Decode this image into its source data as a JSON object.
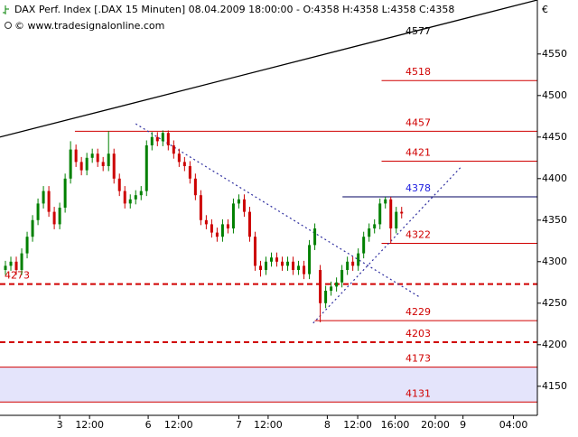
{
  "chart_data": {
    "type": "candlestick",
    "title": "DAX Perf. Index [.DAX  15 Minuten] 08.04.2009 18:00:00 - O:4358 H:4358 L:4358 C:4358",
    "subtitle": "© www.tradesignalonline.com",
    "y_unit": "€",
    "open": [
      4290,
      4295,
      4300,
      4290,
      4310,
      4330,
      4350,
      4370,
      4385,
      4360,
      4345,
      4365,
      4400,
      4435,
      4420,
      4410,
      4425,
      4430,
      4420,
      4415,
      4430,
      4400,
      4385,
      4370,
      4375,
      4380,
      4385,
      4440,
      4450,
      4445,
      4455,
      4440,
      4430,
      4420,
      4415,
      4400,
      4380,
      4350,
      4345,
      4335,
      4330,
      4345,
      4340,
      4370,
      4375,
      4360,
      4330,
      4295,
      4290,
      4300,
      4305,
      4300,
      4295,
      4300,
      4290,
      4295,
      4285,
      4320,
      4290,
      4250,
      4265,
      4270,
      4275,
      4290,
      4300,
      4295,
      4310,
      4330,
      4340,
      4345,
      4370,
      4375,
      4340,
      4360
    ],
    "high": [
      4301,
      4306,
      4306,
      4316,
      4336,
      4356,
      4376,
      4391,
      4391,
      4366,
      4371,
      4406,
      4445,
      4441,
      4426,
      4431,
      4436,
      4436,
      4426,
      4457,
      4436,
      4406,
      4391,
      4381,
      4386,
      4391,
      4446,
      4456,
      4456,
      4458,
      4458,
      4446,
      4436,
      4426,
      4421,
      4406,
      4386,
      4356,
      4351,
      4341,
      4351,
      4351,
      4376,
      4381,
      4381,
      4366,
      4336,
      4301,
      4306,
      4311,
      4311,
      4306,
      4306,
      4306,
      4301,
      4301,
      4326,
      4346,
      4296,
      4271,
      4276,
      4281,
      4296,
      4306,
      4306,
      4316,
      4336,
      4346,
      4351,
      4376,
      4378,
      4378,
      4366,
      4366
    ],
    "low": [
      4284,
      4289,
      4284,
      4284,
      4304,
      4324,
      4344,
      4364,
      4354,
      4339,
      4339,
      4359,
      4394,
      4414,
      4404,
      4404,
      4419,
      4414,
      4409,
      4409,
      4394,
      4379,
      4364,
      4364,
      4369,
      4374,
      4379,
      4434,
      4439,
      4439,
      4434,
      4424,
      4414,
      4409,
      4394,
      4374,
      4344,
      4339,
      4329,
      4324,
      4324,
      4334,
      4334,
      4364,
      4354,
      4324,
      4289,
      4282,
      4284,
      4294,
      4294,
      4289,
      4289,
      4284,
      4284,
      4279,
      4279,
      4314,
      4227,
      4244,
      4259,
      4264,
      4269,
      4284,
      4289,
      4289,
      4304,
      4324,
      4334,
      4339,
      4364,
      4322,
      4334,
      4352
    ],
    "close": [
      4295,
      4300,
      4290,
      4310,
      4330,
      4350,
      4370,
      4385,
      4360,
      4345,
      4365,
      4400,
      4435,
      4420,
      4410,
      4425,
      4430,
      4420,
      4415,
      4430,
      4400,
      4385,
      4370,
      4375,
      4380,
      4385,
      4440,
      4450,
      4445,
      4455,
      4440,
      4430,
      4420,
      4415,
      4400,
      4380,
      4350,
      4345,
      4335,
      4330,
      4345,
      4340,
      4370,
      4375,
      4360,
      4330,
      4295,
      4290,
      4300,
      4305,
      4300,
      4295,
      4300,
      4290,
      4295,
      4285,
      4320,
      4340,
      4250,
      4265,
      4270,
      4275,
      4290,
      4300,
      4295,
      4310,
      4330,
      4340,
      4345,
      4370,
      4375,
      4340,
      4360,
      4358
    ],
    "up_color": "#008000",
    "down_color": "#cc0000",
    "xlim": [
      -1,
      98
    ],
    "ylim": [
      4115,
      4615
    ],
    "xticks": [
      {
        "value": 10.0,
        "label": "3"
      },
      {
        "value": 15.5,
        "label": "12:00"
      },
      {
        "value": 26.3,
        "label": "6"
      },
      {
        "value": 31.9,
        "label": "12:00"
      },
      {
        "value": 43.0,
        "label": "7"
      },
      {
        "value": 48.4,
        "label": "12:00"
      },
      {
        "value": 59.3,
        "label": "8"
      },
      {
        "value": 64.9,
        "label": "12:00"
      },
      {
        "value": 71.8,
        "label": "16:00"
      },
      {
        "value": 79.2,
        "label": "20:00"
      },
      {
        "value": 84.3,
        "label": "9"
      },
      {
        "value": 93.6,
        "label": "04:00"
      }
    ],
    "yticks": [
      4150,
      4200,
      4250,
      4300,
      4350,
      4400,
      4450,
      4500,
      4550
    ],
    "levels": [
      {
        "value": 4518,
        "x_start": 69.3,
        "color": "#d00000",
        "style": "solid",
        "label_at": "right"
      },
      {
        "value": 4457,
        "x_start": 12.8,
        "color": "#d00000",
        "style": "solid",
        "label_at": "right"
      },
      {
        "value": 4421,
        "x_start": 69.3,
        "color": "#d00000",
        "style": "solid",
        "label_at": "right"
      },
      {
        "value": 4378,
        "x_start": 62.1,
        "color": "#000060",
        "label_color": "#2020e0",
        "style": "solid",
        "label_at": "right"
      },
      {
        "value": 4322,
        "x_start": 69.3,
        "color": "#d00000",
        "style": "solid",
        "label_at": "right"
      },
      {
        "value": 4273,
        "x_start": -1,
        "color": "#d00000",
        "style": "dashed",
        "label_at": "left"
      },
      {
        "value": 4229,
        "x_start": 57.0,
        "color": "#d00000",
        "style": "solid",
        "label_at": "right"
      },
      {
        "value": 4203,
        "x_start": -1,
        "color": "#d00000",
        "style": "dashed",
        "label_at": "right"
      },
      {
        "value": 4173,
        "x_start": -1,
        "color": "#d00000",
        "style": "solid",
        "label_at": "right"
      },
      {
        "value": 4131,
        "x_start": -1,
        "color": "#d00000",
        "style": "solid",
        "label_at": "right"
      }
    ],
    "band": {
      "from": 4131,
      "to": 4173,
      "color": "#e4e4fb"
    },
    "trendlines": [
      {
        "x": [
          -1,
          98
        ],
        "y": [
          4450,
          4615
        ],
        "color": "#000000",
        "style": "solid",
        "label": 4577
      },
      {
        "x": [
          24.0,
          76.4
        ],
        "y": [
          4466,
          4257
        ],
        "color": "#3030a0",
        "style": "dotted"
      },
      {
        "x": [
          56.7,
          83.8
        ],
        "y": [
          4226,
          4413
        ],
        "color": "#3030a0",
        "style": "dotted"
      }
    ]
  }
}
